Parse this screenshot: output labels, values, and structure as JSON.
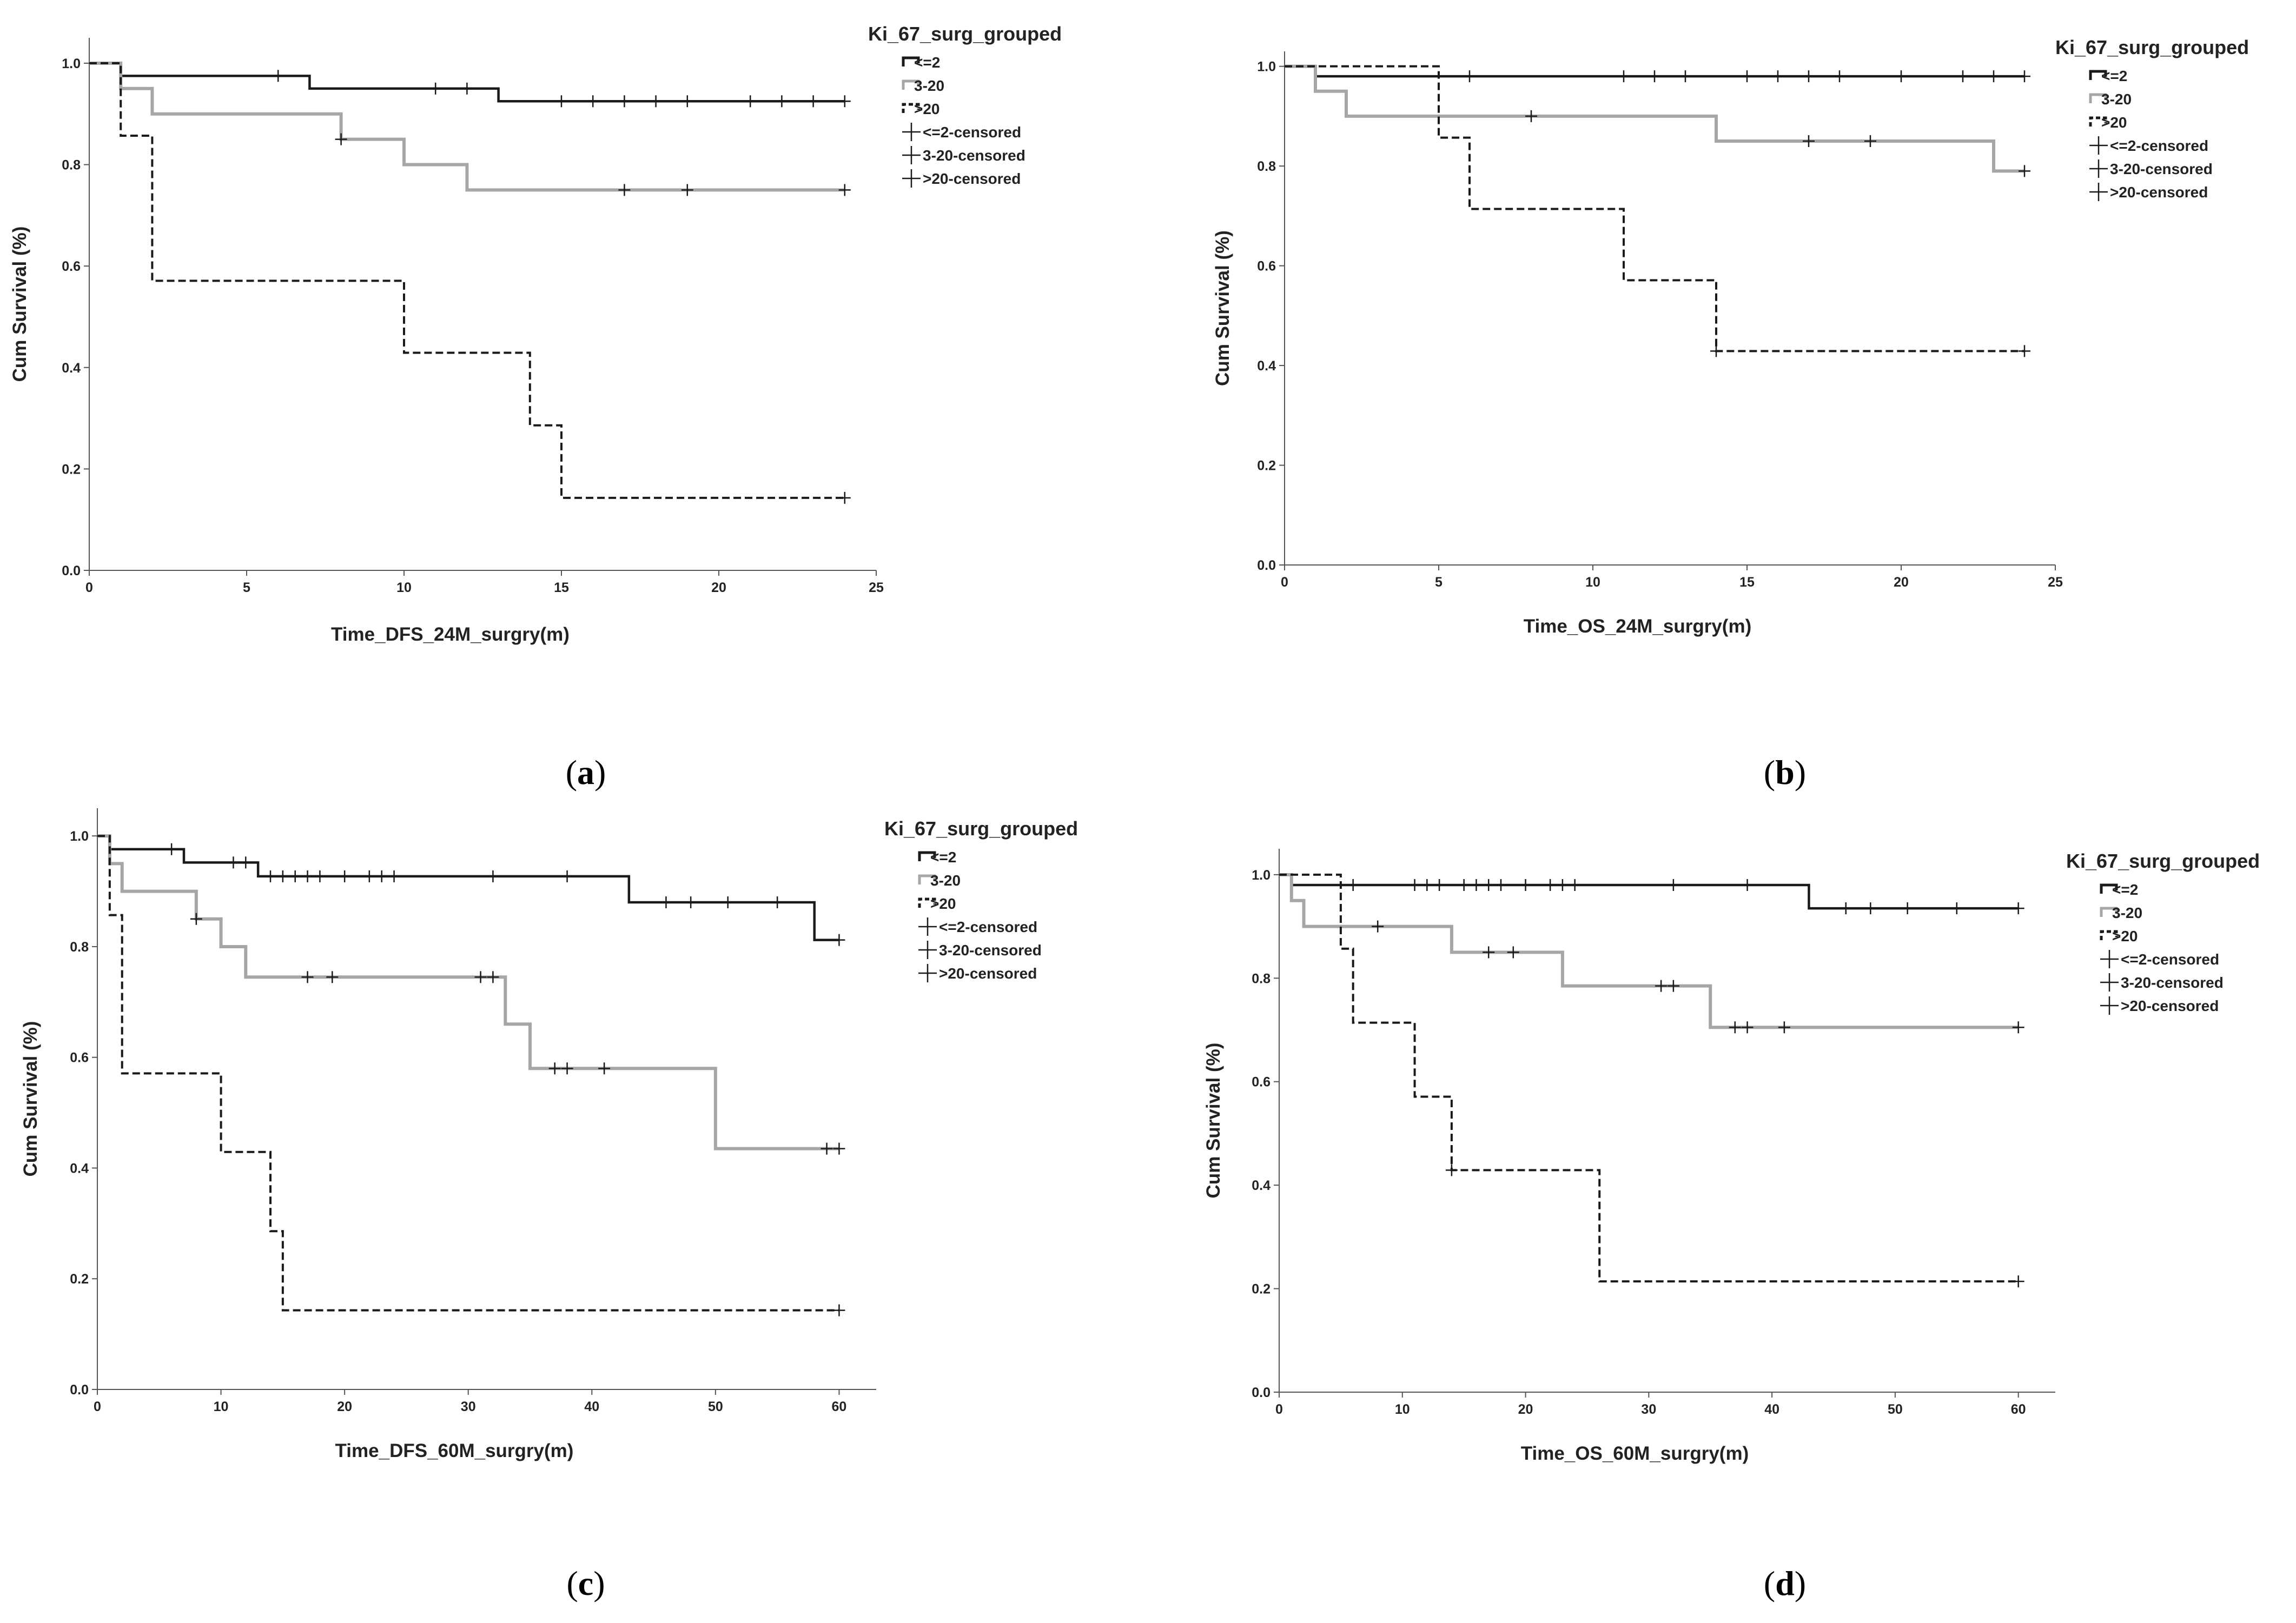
{
  "colors": {
    "le2": "#1a1a1a",
    "m3_20": "#a6a6a6",
    "gt20": "#1a1a1a",
    "axis": "#555555",
    "bg": "#ffffff"
  },
  "legend": {
    "title": "Ki_67_surg_grouped",
    "entries": [
      "<=2",
      "3-20",
      ">20",
      "<=2-censored",
      "3-20-censored",
      ">20-censored"
    ]
  },
  "panels": [
    {
      "letter": "a"
    },
    {
      "letter": "b"
    },
    {
      "letter": "c"
    },
    {
      "letter": "d"
    }
  ],
  "chart_data": [
    {
      "type": "line",
      "subtype": "kaplan-meier",
      "xlabel": "Time_DFS_24M_surgry(m)",
      "ylabel": "Cum Survival (%)",
      "xlim": [
        0,
        25
      ],
      "ylim": [
        0,
        1.05
      ],
      "xticks": [
        0,
        5,
        10,
        15,
        20,
        25
      ],
      "yticks": [
        0.0,
        0.2,
        0.4,
        0.6,
        0.8,
        1.0
      ],
      "series": [
        {
          "name": "<=2",
          "steps": [
            [
              0,
              1.0
            ],
            [
              1,
              0.975
            ],
            [
              7,
              0.95
            ],
            [
              13,
              0.925
            ],
            [
              24,
              0.925
            ]
          ],
          "censored": [
            6,
            11,
            12,
            15,
            16,
            17,
            18,
            19,
            21,
            22,
            23,
            24
          ]
        },
        {
          "name": "3-20",
          "steps": [
            [
              0,
              1.0
            ],
            [
              1,
              0.95
            ],
            [
              2,
              0.9
            ],
            [
              8,
              0.85
            ],
            [
              10,
              0.8
            ],
            [
              12,
              0.75
            ],
            [
              24,
              0.75
            ]
          ],
          "censored": [
            8,
            17,
            19,
            24
          ]
        },
        {
          "name": ">20",
          "steps": [
            [
              0,
              1.0
            ],
            [
              1,
              0.857
            ],
            [
              2,
              0.571
            ],
            [
              10,
              0.429
            ],
            [
              14,
              0.286
            ],
            [
              15,
              0.143
            ],
            [
              24,
              0.143
            ]
          ],
          "censored": [
            24
          ]
        }
      ]
    },
    {
      "type": "line",
      "subtype": "kaplan-meier",
      "xlabel": "Time_OS_24M_surgry(m)",
      "ylabel": "Cum Survival (%)",
      "xlim": [
        0,
        25
      ],
      "ylim": [
        0,
        1.03
      ],
      "xticks": [
        0,
        5,
        10,
        15,
        20,
        25
      ],
      "yticks": [
        0.0,
        0.2,
        0.4,
        0.6,
        0.8,
        1.0
      ],
      "series": [
        {
          "name": "<=2",
          "steps": [
            [
              0,
              1.0
            ],
            [
              1,
              0.98
            ],
            [
              24,
              0.98
            ]
          ],
          "censored": [
            6,
            11,
            12,
            13,
            15,
            16,
            17,
            18,
            20,
            22,
            23,
            24
          ]
        },
        {
          "name": "3-20",
          "steps": [
            [
              0,
              1.0
            ],
            [
              1,
              0.95
            ],
            [
              2,
              0.9
            ],
            [
              14,
              0.85
            ],
            [
              23,
              0.79
            ],
            [
              24,
              0.79
            ]
          ],
          "censored": [
            8,
            17,
            19,
            24
          ]
        },
        {
          "name": ">20",
          "steps": [
            [
              0,
              1.0
            ],
            [
              5,
              0.857
            ],
            [
              6,
              0.714
            ],
            [
              11,
              0.571
            ],
            [
              14,
              0.429
            ],
            [
              24,
              0.429
            ]
          ],
          "censored": [
            14,
            24
          ]
        }
      ]
    },
    {
      "type": "line",
      "subtype": "kaplan-meier",
      "xlabel": "Time_DFS_60M_surgry(m)",
      "ylabel": "Cum Survival (%)",
      "xlim": [
        0,
        63
      ],
      "ylim": [
        0,
        1.05
      ],
      "xticks": [
        0,
        10,
        20,
        30,
        40,
        50,
        60
      ],
      "yticks": [
        0.0,
        0.2,
        0.4,
        0.6,
        0.8,
        1.0
      ],
      "series": [
        {
          "name": "<=2",
          "steps": [
            [
              0,
              1.0
            ],
            [
              1,
              0.976
            ],
            [
              7,
              0.952
            ],
            [
              13,
              0.927
            ],
            [
              43,
              0.88
            ],
            [
              58,
              0.812
            ],
            [
              60,
              0.812
            ]
          ],
          "censored": [
            6,
            11,
            12,
            14,
            15,
            16,
            17,
            18,
            20,
            22,
            23,
            24,
            32,
            38,
            46,
            48,
            51,
            55,
            60
          ]
        },
        {
          "name": "3-20",
          "steps": [
            [
              0,
              1.0
            ],
            [
              1,
              0.95
            ],
            [
              2,
              0.9
            ],
            [
              8,
              0.85
            ],
            [
              10,
              0.8
            ],
            [
              12,
              0.745
            ],
            [
              33,
              0.66
            ],
            [
              35,
              0.58
            ],
            [
              50,
              0.435
            ],
            [
              60,
              0.435
            ]
          ],
          "censored": [
            8,
            17,
            19,
            31,
            32,
            37,
            38,
            41,
            59,
            60
          ]
        },
        {
          "name": ">20",
          "steps": [
            [
              0,
              1.0
            ],
            [
              1,
              0.857
            ],
            [
              2,
              0.571
            ],
            [
              10,
              0.429
            ],
            [
              14,
              0.286
            ],
            [
              15,
              0.143
            ],
            [
              60,
              0.143
            ]
          ],
          "censored": [
            60
          ]
        }
      ]
    },
    {
      "type": "line",
      "subtype": "kaplan-meier",
      "xlabel": "Time_OS_60M_surgry(m)",
      "ylabel": "Cum Survival (%)",
      "xlim": [
        0,
        63
      ],
      "ylim": [
        0,
        1.05
      ],
      "xticks": [
        0,
        10,
        20,
        30,
        40,
        50,
        60
      ],
      "yticks": [
        0.0,
        0.2,
        0.4,
        0.6,
        0.8,
        1.0
      ],
      "series": [
        {
          "name": "<=2",
          "steps": [
            [
              0,
              1.0
            ],
            [
              1,
              0.98
            ],
            [
              43,
              0.935
            ],
            [
              60,
              0.935
            ]
          ],
          "censored": [
            6,
            11,
            12,
            13,
            15,
            16,
            17,
            18,
            20,
            22,
            23,
            24,
            32,
            38,
            46,
            48,
            51,
            55,
            60
          ]
        },
        {
          "name": "3-20",
          "steps": [
            [
              0,
              1.0
            ],
            [
              1,
              0.95
            ],
            [
              2,
              0.9
            ],
            [
              14,
              0.85
            ],
            [
              23,
              0.785
            ],
            [
              35,
              0.705
            ],
            [
              60,
              0.705
            ]
          ],
          "censored": [
            8,
            17,
            19,
            31,
            32,
            37,
            38,
            41,
            60
          ]
        },
        {
          "name": ">20",
          "steps": [
            [
              0,
              1.0
            ],
            [
              5,
              0.857
            ],
            [
              6,
              0.714
            ],
            [
              11,
              0.571
            ],
            [
              14,
              0.429
            ],
            [
              26,
              0.214
            ],
            [
              60,
              0.214
            ]
          ],
          "censored": [
            14,
            60
          ]
        }
      ]
    }
  ]
}
